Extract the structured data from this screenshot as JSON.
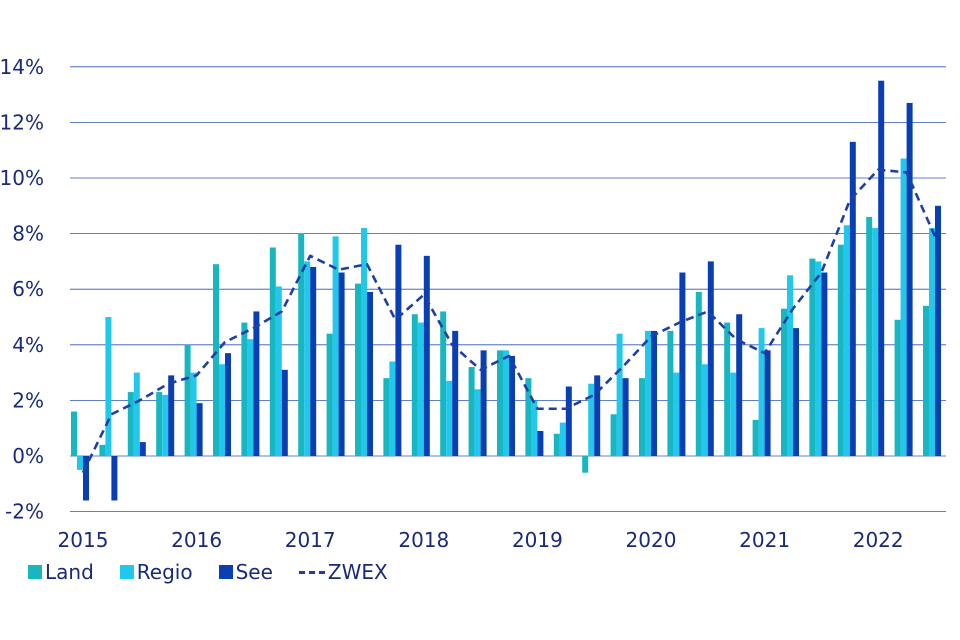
{
  "chart_data": {
    "type": "bar",
    "title": "",
    "xlabel": "",
    "ylabel": "",
    "x_tick_labels": [
      "2015",
      "2016",
      "2017",
      "2018",
      "2019",
      "2020",
      "2021",
      "2022"
    ],
    "y_tick_labels": [
      "-2%",
      "0%",
      "2%",
      "4%",
      "6%",
      "8%",
      "10%",
      "12%",
      "14%"
    ],
    "ylim": [
      -2,
      14
    ],
    "y_unit": "%",
    "grid": "horizontal",
    "legend_position": "bottom-left",
    "categories": [
      "2015 Q1",
      "2015 Q2",
      "2015 Q3",
      "2015 Q4",
      "2016 Q1",
      "2016 Q2",
      "2016 Q3",
      "2016 Q4",
      "2017 Q1",
      "2017 Q2",
      "2017 Q3",
      "2017 Q4",
      "2018 Q1",
      "2018 Q2",
      "2018 Q3",
      "2018 Q4",
      "2019 Q1",
      "2019 Q2",
      "2019 Q3",
      "2019 Q4",
      "2020 Q1",
      "2020 Q2",
      "2020 Q3",
      "2020 Q4",
      "2021 Q1",
      "2021 Q2",
      "2021 Q3",
      "2021 Q4",
      "2022 Q1",
      "2022 Q2",
      "2022 Q3"
    ],
    "series": [
      {
        "name": "Land",
        "kind": "bar",
        "color": "#18b6c0",
        "values": [
          1.6,
          0.4,
          2.3,
          2.3,
          4.0,
          6.9,
          4.8,
          7.5,
          8.0,
          4.4,
          6.2,
          2.8,
          5.1,
          5.2,
          3.2,
          3.8,
          2.8,
          0.8,
          -0.6,
          1.5,
          2.8,
          4.5,
          5.9,
          4.8,
          1.3,
          5.3,
          7.1,
          7.6,
          8.6,
          4.9,
          5.4
        ]
      },
      {
        "name": "Regio",
        "kind": "bar",
        "color": "#22c7ec",
        "values": [
          -0.5,
          5.0,
          3.0,
          2.2,
          3.0,
          3.3,
          4.2,
          6.1,
          7.0,
          7.9,
          8.2,
          3.4,
          4.8,
          2.7,
          2.4,
          3.8,
          2.0,
          1.2,
          2.6,
          4.4,
          4.5,
          3.0,
          3.3,
          3.0,
          4.6,
          6.5,
          7.0,
          8.3,
          8.2,
          10.7,
          8.2
        ]
      },
      {
        "name": "See",
        "kind": "bar",
        "color": "#0a3fb4",
        "values": [
          -1.6,
          -1.6,
          0.5,
          2.9,
          1.9,
          3.7,
          5.2,
          3.1,
          6.8,
          6.6,
          5.9,
          7.6,
          7.2,
          4.5,
          3.8,
          3.6,
          0.9,
          2.5,
          2.9,
          2.8,
          4.5,
          6.6,
          7.0,
          5.1,
          3.8,
          4.6,
          6.6,
          11.3,
          13.5,
          12.7,
          9.0
        ]
      },
      {
        "name": "ZWEX",
        "kind": "line",
        "dashed": true,
        "color": "#1f3fa8",
        "values": [
          -0.6,
          1.5,
          2.0,
          2.6,
          2.9,
          4.1,
          4.6,
          5.2,
          7.2,
          6.7,
          6.9,
          4.9,
          5.8,
          4.0,
          3.1,
          3.6,
          1.7,
          1.7,
          2.2,
          3.2,
          4.3,
          4.8,
          5.2,
          4.2,
          3.7,
          5.3,
          6.6,
          9.2,
          10.3,
          10.2,
          7.9
        ]
      }
    ]
  }
}
